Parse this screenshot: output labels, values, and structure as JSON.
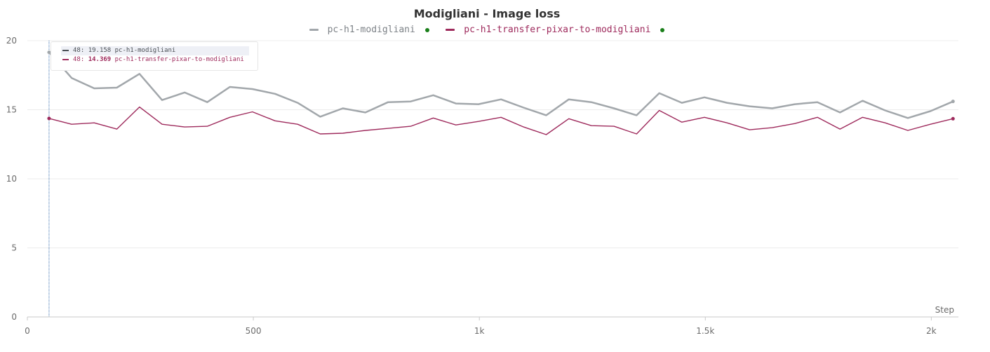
{
  "chart_data": {
    "type": "line",
    "title": "Modigliani - Image loss",
    "xlabel": "Step",
    "ylabel": "",
    "xlim": [
      0,
      2060
    ],
    "ylim": [
      0,
      20
    ],
    "x_ticks": [
      0,
      500,
      1000,
      1500,
      2000
    ],
    "x_tick_labels": [
      "0",
      "500",
      "1k",
      "1.5k",
      "2k"
    ],
    "y_ticks": [
      0,
      5,
      10,
      15,
      20
    ],
    "y_tick_labels": [
      "0",
      "5",
      "10",
      "15",
      "20"
    ],
    "grid": true,
    "legend_position": "top-center",
    "series": [
      {
        "name": "pc-h1-modigliani",
        "color": "#a2a7ab",
        "x": [
          48,
          98,
          148,
          198,
          248,
          298,
          348,
          398,
          448,
          498,
          548,
          598,
          648,
          698,
          748,
          798,
          848,
          898,
          948,
          998,
          1048,
          1098,
          1148,
          1198,
          1248,
          1298,
          1348,
          1398,
          1448,
          1498,
          1548,
          1598,
          1648,
          1698,
          1748,
          1798,
          1848,
          1898,
          1948,
          1998,
          2048
        ],
        "y": [
          19.158,
          17.3,
          16.55,
          16.6,
          17.6,
          15.7,
          16.25,
          15.55,
          16.65,
          16.5,
          16.15,
          15.5,
          14.5,
          15.1,
          14.8,
          15.55,
          15.6,
          16.05,
          15.45,
          15.4,
          15.75,
          15.15,
          14.6,
          15.75,
          15.55,
          15.1,
          14.6,
          16.2,
          15.5,
          15.9,
          15.5,
          15.25,
          15.1,
          15.4,
          15.55,
          14.8,
          15.65,
          14.95,
          14.4,
          14.9,
          15.6
        ]
      },
      {
        "name": "pc-h1-transfer-pixar-to-modigliani",
        "color": "#9e2a5c",
        "x": [
          48,
          98,
          148,
          198,
          248,
          298,
          348,
          398,
          448,
          498,
          548,
          598,
          648,
          698,
          748,
          798,
          848,
          898,
          948,
          998,
          1048,
          1098,
          1148,
          1198,
          1248,
          1298,
          1348,
          1398,
          1448,
          1498,
          1548,
          1598,
          1648,
          1698,
          1748,
          1798,
          1848,
          1898,
          1948,
          1998,
          2048
        ],
        "y": [
          14.369,
          13.95,
          14.05,
          13.6,
          15.2,
          13.95,
          13.75,
          13.8,
          14.45,
          14.85,
          14.2,
          13.95,
          13.25,
          13.3,
          13.5,
          13.65,
          13.8,
          14.4,
          13.9,
          14.15,
          14.45,
          13.75,
          13.2,
          14.35,
          13.85,
          13.8,
          13.25,
          14.95,
          14.1,
          14.45,
          14.05,
          13.55,
          13.7,
          14.0,
          14.45,
          13.6,
          14.45,
          14.05,
          13.5,
          13.95,
          14.35
        ]
      }
    ],
    "hover": {
      "step": 48,
      "rows": [
        {
          "prefix": "48: ",
          "value": "19.158",
          "name": "pc-h1-modigliani",
          "color": "#4a4f55",
          "bold": false,
          "highlight": true
        },
        {
          "prefix": "48: ",
          "value": "14.369",
          "name": "pc-h1-transfer-pixar-to-modigliani",
          "color": "#9e2a5c",
          "bold": true,
          "highlight": false
        }
      ]
    },
    "status_dot_color": "#1a7f1a"
  }
}
